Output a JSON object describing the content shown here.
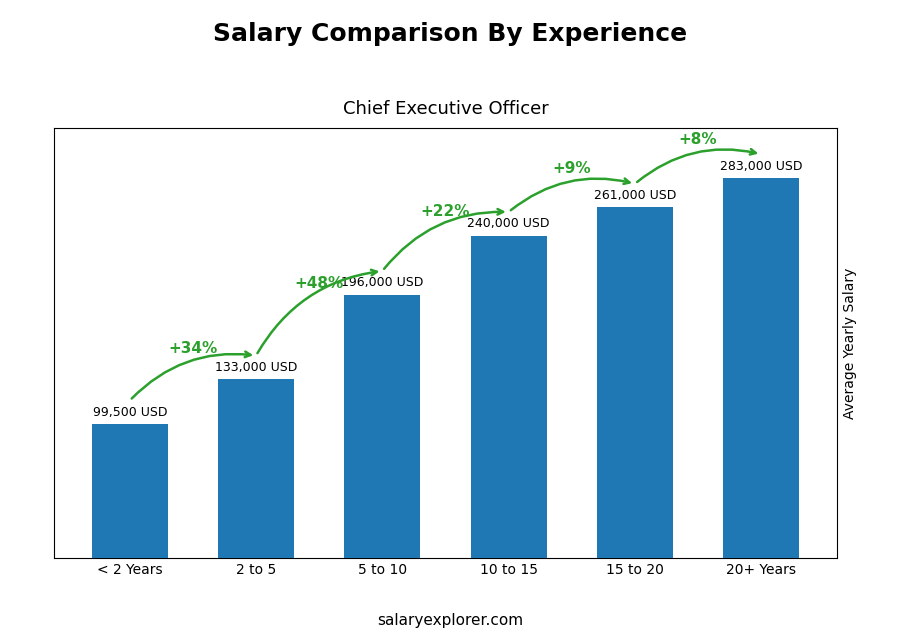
{
  "chart_data": {
    "type": "bar",
    "title": "Salary Comparison By Experience",
    "subtitle": "Chief Executive Officer",
    "ylabel": "Average Yearly Salary",
    "footer": "salaryexplorer.com",
    "categories": [
      "< 2 Years",
      "2 to 5",
      "5 to 10",
      "10 to 15",
      "15 to 20",
      "20+ Years"
    ],
    "values": [
      99500,
      133000,
      196000,
      240000,
      261000,
      283000
    ],
    "value_labels": [
      "99,500 USD",
      "133,000 USD",
      "196,000 USD",
      "240,000 USD",
      "261,000 USD",
      "283,000 USD"
    ],
    "data_labels": true,
    "annotations": [
      "+34%",
      "+48%",
      "+22%",
      "+9%",
      "+8%"
    ],
    "ylim": [
      0,
      320000
    ],
    "yticks": [],
    "tick_labels": "x",
    "grid": false
  }
}
